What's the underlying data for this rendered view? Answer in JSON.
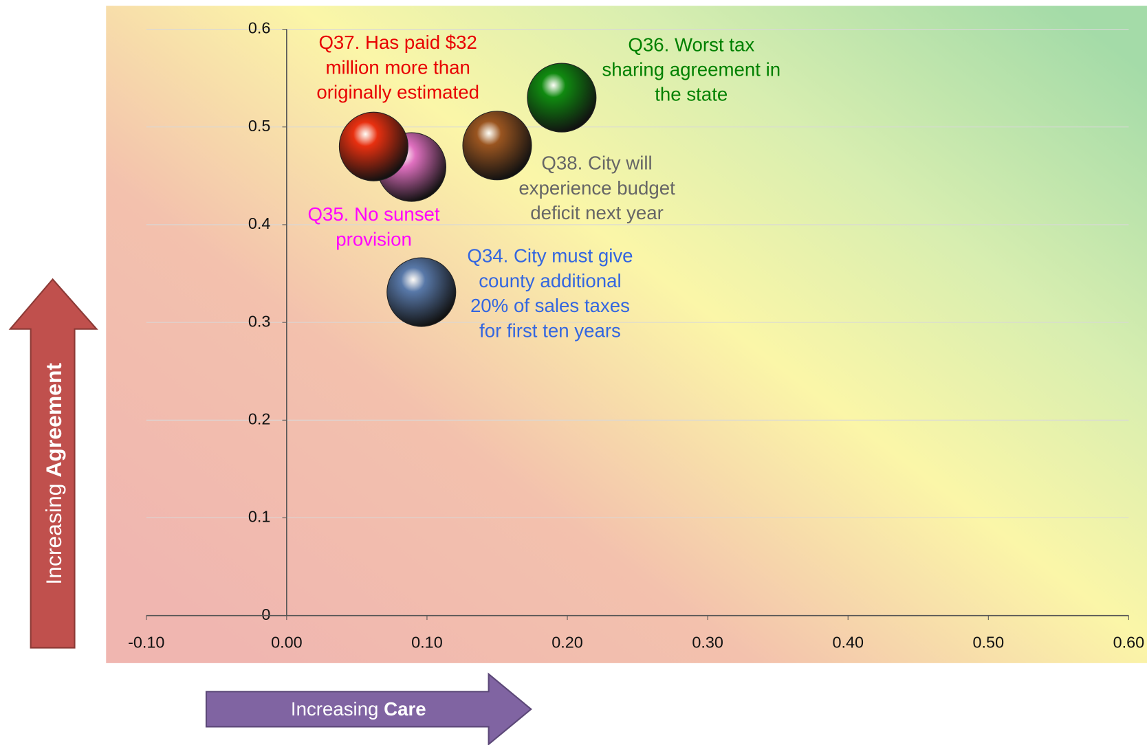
{
  "chart_data": {
    "type": "scatter",
    "xlim": [
      -0.1,
      0.6
    ],
    "ylim": [
      0,
      0.6
    ],
    "xticks": [
      {
        "value": -0.1,
        "label": "-0.10"
      },
      {
        "value": 0,
        "label": "0.00"
      },
      {
        "value": 0.1,
        "label": "0.10"
      },
      {
        "value": 0.2,
        "label": "0.20"
      },
      {
        "value": 0.3,
        "label": "0.30"
      },
      {
        "value": 0.4,
        "label": "0.40"
      },
      {
        "value": 0.5,
        "label": "0.50"
      },
      {
        "value": 0.6,
        "label": "0.60"
      }
    ],
    "yticks": [
      0,
      0.1,
      0.2,
      0.3,
      0.4,
      0.5,
      0.6
    ],
    "grid": true,
    "xlabel": {
      "text": "Increasing",
      "emphasis": "Care"
    },
    "ylabel": {
      "text": "Increasing",
      "emphasis": "Agreement"
    },
    "series": [
      {
        "label": [
          "Q35. No sunset",
          "provision"
        ],
        "color": "#e070c0",
        "label_color": "#ff00ff",
        "x": [
          0.089
        ],
        "values": [
          0.459
        ]
      },
      {
        "label": [
          "Q37. Has paid $32",
          "million more than",
          "originally estimated"
        ],
        "color": "#e83010",
        "label_color": "#e80000",
        "x": [
          0.062
        ],
        "values": [
          0.48
        ]
      },
      {
        "label": [
          "Q38. City will",
          "experience budget",
          "deficit next year"
        ],
        "color": "#9a5520",
        "label_color": "#666666",
        "x": [
          0.15
        ],
        "values": [
          0.481
        ]
      },
      {
        "label": [
          "Q36. Worst tax",
          "sharing agreement in",
          "the state"
        ],
        "color": "#108a10",
        "label_color": "#008000",
        "x": [
          0.196
        ],
        "values": [
          0.53
        ]
      },
      {
        "label": [
          "Q34. City must give",
          "county additional",
          "20% of sales taxes",
          "for first ten years"
        ],
        "color": "#5878a8",
        "label_color": "#3366e0",
        "x": [
          0.096
        ],
        "values": [
          0.331
        ]
      }
    ]
  }
}
